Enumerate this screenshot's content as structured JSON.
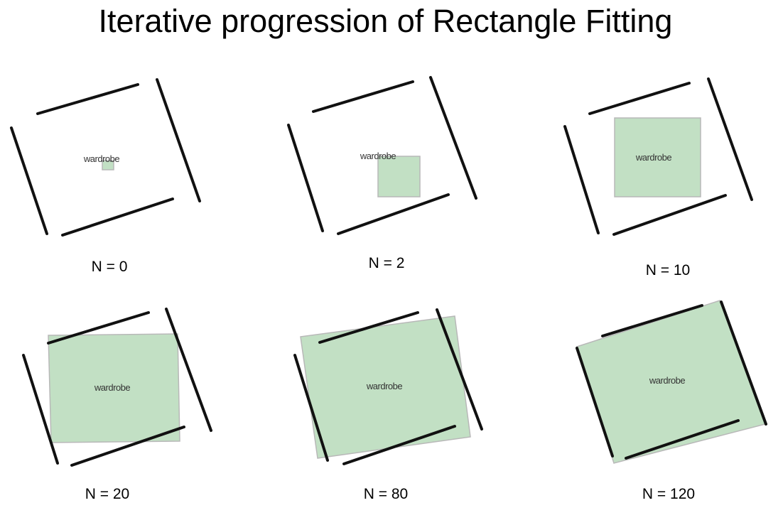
{
  "title": "Iterative progression of Rectangle Fitting",
  "object_label": "wardrobe",
  "colors": {
    "fitted_rectangle": "#c2e0c4",
    "walls": "#111111",
    "background": "#ffffff"
  },
  "panels": [
    {
      "caption": "N = 0",
      "iteration": 0
    },
    {
      "caption": "N = 2",
      "iteration": 2
    },
    {
      "caption": "N = 10",
      "iteration": 10
    },
    {
      "caption": "N = 20",
      "iteration": 20
    },
    {
      "caption": "N = 80",
      "iteration": 80
    },
    {
      "caption": "N = 120",
      "iteration": 120
    }
  ]
}
